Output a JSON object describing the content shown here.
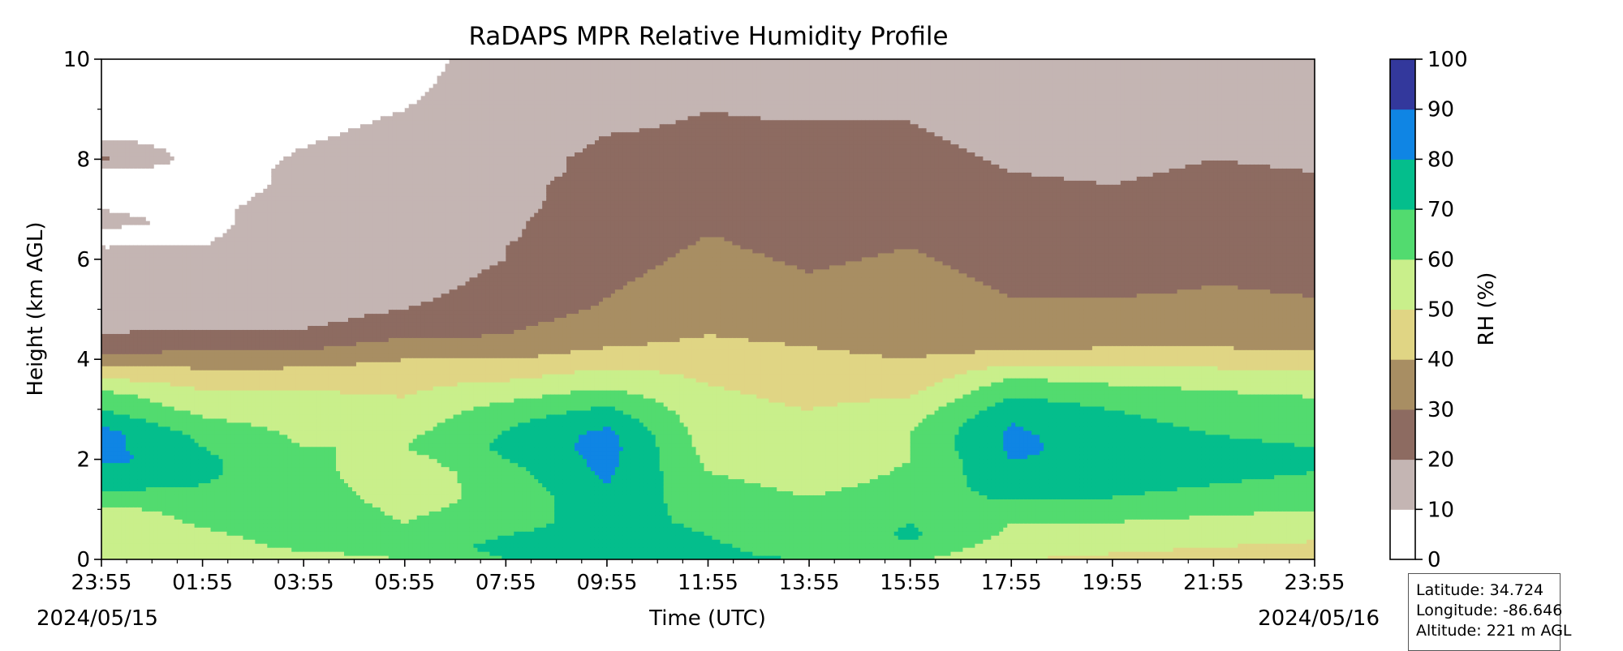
{
  "chart_data": {
    "type": "heatmap",
    "subtype": "filled contour (time-height cross section)",
    "title": "RaDAPS MPR Relative Humidity Profile",
    "xlabel": "Time (UTC)",
    "ylabel": "Height (km AGL)",
    "x_ticks": [
      "23:55",
      "01:55",
      "03:55",
      "05:55",
      "07:55",
      "09:55",
      "11:55",
      "13:55",
      "15:55",
      "17:55",
      "19:55",
      "21:55",
      "23:55"
    ],
    "x_start_date": "2024/05/15",
    "x_end_date": "2024/05/16",
    "y_ticks": [
      0,
      2,
      4,
      6,
      8,
      10
    ],
    "ylim": [
      0,
      10
    ],
    "grid": false,
    "colorbar": {
      "label": "RH (%)",
      "ticks": [
        0,
        10,
        20,
        30,
        40,
        50,
        60,
        70,
        80,
        90,
        100
      ],
      "colors": [
        "#ffffff",
        "#c4b5b3",
        "#8d6b61",
        "#a88e63",
        "#e0d584",
        "#c9ef8b",
        "#52db6f",
        "#04be8c",
        "#0f85e4",
        "#33389c"
      ]
    },
    "times": [
      "23:55",
      "01:55",
      "03:55",
      "05:55",
      "07:55",
      "09:55",
      "11:55",
      "13:55",
      "15:55",
      "17:55",
      "19:55",
      "21:55",
      "23:55"
    ],
    "heights_km": [
      0,
      0.25,
      0.5,
      0.75,
      1,
      1.25,
      1.5,
      1.75,
      2,
      2.25,
      2.5,
      2.75,
      3,
      3.25,
      3.5,
      3.75,
      4,
      4.25,
      4.5,
      4.75,
      5,
      5.25,
      5.5,
      5.75,
      6,
      6.25,
      6.5,
      6.75,
      7,
      7.25,
      7.5,
      7.75,
      8,
      8.25,
      8.5,
      8.75,
      9,
      9.25,
      9.5,
      9.75,
      10
    ],
    "rh_percent": [
      [
        55,
        52,
        50,
        50,
        56,
        68,
        72,
        74,
        84,
        83,
        84,
        78,
        70,
        65,
        55,
        45,
        35,
        25,
        20,
        18,
        16,
        15,
        15,
        16,
        15,
        10,
        8,
        12,
        10,
        6,
        5,
        8,
        22,
        15,
        8,
        6,
        5,
        5,
        5,
        5,
        5
      ],
      [
        52,
        55,
        58,
        62,
        65,
        68,
        70,
        72,
        72,
        70,
        68,
        62,
        57,
        52,
        48,
        42,
        35,
        28,
        22,
        18,
        16,
        15,
        15,
        14,
        12,
        10,
        9,
        8,
        8,
        7,
        6,
        6,
        6,
        6,
        6,
        5,
        5,
        5,
        5,
        5,
        5
      ],
      [
        55,
        62,
        65,
        65,
        66,
        65,
        64,
        63,
        62,
        60,
        58,
        56,
        54,
        52,
        48,
        42,
        36,
        28,
        22,
        18,
        16,
        15,
        15,
        15,
        15,
        15,
        14,
        14,
        14,
        13,
        12,
        12,
        11,
        10,
        9,
        8,
        7,
        6,
        5,
        5,
        5
      ],
      [
        60,
        65,
        63,
        60,
        58,
        56,
        55,
        54,
        56,
        60,
        58,
        55,
        53,
        50,
        48,
        45,
        40,
        35,
        28,
        24,
        20,
        18,
        17,
        17,
        17,
        16,
        16,
        16,
        16,
        15,
        15,
        15,
        14,
        13,
        12,
        11,
        10,
        9,
        8,
        7,
        6
      ],
      [
        70,
        73,
        70,
        66,
        64,
        63,
        64,
        66,
        70,
        72,
        71,
        68,
        64,
        58,
        52,
        46,
        40,
        34,
        30,
        28,
        26,
        24,
        22,
        21,
        20,
        20,
        19,
        19,
        18,
        18,
        18,
        17,
        17,
        16,
        16,
        16,
        15,
        15,
        15,
        15,
        15
      ],
      [
        78,
        76,
        75,
        74,
        76,
        78,
        80,
        82,
        83,
        84,
        83,
        78,
        72,
        65,
        58,
        52,
        45,
        40,
        36,
        33,
        31,
        30,
        29,
        28,
        27,
        26,
        25,
        24,
        24,
        23,
        23,
        22,
        22,
        21,
        20,
        18,
        16,
        15,
        15,
        15,
        15
      ],
      [
        72,
        72,
        70,
        68,
        66,
        64,
        62,
        60,
        58,
        56,
        55,
        54,
        53,
        52,
        50,
        48,
        45,
        42,
        40,
        38,
        36,
        35,
        34,
        33,
        32,
        31,
        30,
        29,
        28,
        27,
        26,
        25,
        24,
        23,
        22,
        21,
        20,
        18,
        16,
        15,
        15
      ],
      [
        70,
        65,
        60,
        60,
        62,
        60,
        58,
        56,
        55,
        54,
        53,
        52,
        50,
        48,
        46,
        45,
        42,
        40,
        38,
        36,
        34,
        32,
        31,
        30,
        29,
        28,
        28,
        27,
        27,
        26,
        26,
        25,
        25,
        24,
        22,
        20,
        18,
        16,
        15,
        15,
        15
      ],
      [
        62,
        68,
        72,
        70,
        68,
        64,
        62,
        61,
        60,
        60,
        60,
        58,
        54,
        50,
        46,
        42,
        40,
        38,
        37,
        36,
        35,
        34,
        33,
        32,
        31,
        30,
        29,
        28,
        27,
        26,
        25,
        24,
        23,
        22,
        21,
        20,
        19,
        18,
        17,
        16,
        15
      ],
      [
        50,
        55,
        58,
        60,
        65,
        72,
        76,
        78,
        80,
        82,
        82,
        80,
        76,
        70,
        64,
        56,
        45,
        38,
        35,
        33,
        31,
        30,
        29,
        28,
        27,
        26,
        25,
        24,
        23,
        22,
        21,
        20,
        19,
        18,
        17,
        16,
        15,
        15,
        15,
        15,
        15
      ],
      [
        48,
        52,
        56,
        60,
        64,
        70,
        74,
        76,
        78,
        76,
        74,
        72,
        70,
        66,
        60,
        54,
        46,
        40,
        36,
        34,
        32,
        30,
        28,
        27,
        26,
        25,
        24,
        23,
        22,
        21,
        20,
        19,
        18,
        17,
        16,
        16,
        15,
        15,
        15,
        15,
        15
      ],
      [
        46,
        50,
        54,
        58,
        62,
        66,
        70,
        72,
        74,
        72,
        70,
        68,
        66,
        62,
        58,
        52,
        46,
        40,
        36,
        34,
        32,
        31,
        30,
        29,
        28,
        27,
        26,
        25,
        24,
        23,
        22,
        21,
        20,
        19,
        18,
        17,
        16,
        15,
        15,
        15,
        15
      ],
      [
        44,
        48,
        52,
        56,
        60,
        64,
        68,
        70,
        72,
        70,
        68,
        66,
        64,
        60,
        56,
        50,
        44,
        38,
        35,
        33,
        31,
        30,
        29,
        28,
        27,
        26,
        25,
        24,
        23,
        22,
        21,
        20,
        19,
        18,
        17,
        16,
        15,
        15,
        15,
        15,
        15
      ]
    ]
  },
  "info_box": {
    "latitude": "Latitude: 34.724",
    "longitude": "Longitude: -86.646",
    "altitude": "Altitude: 221 m AGL"
  }
}
